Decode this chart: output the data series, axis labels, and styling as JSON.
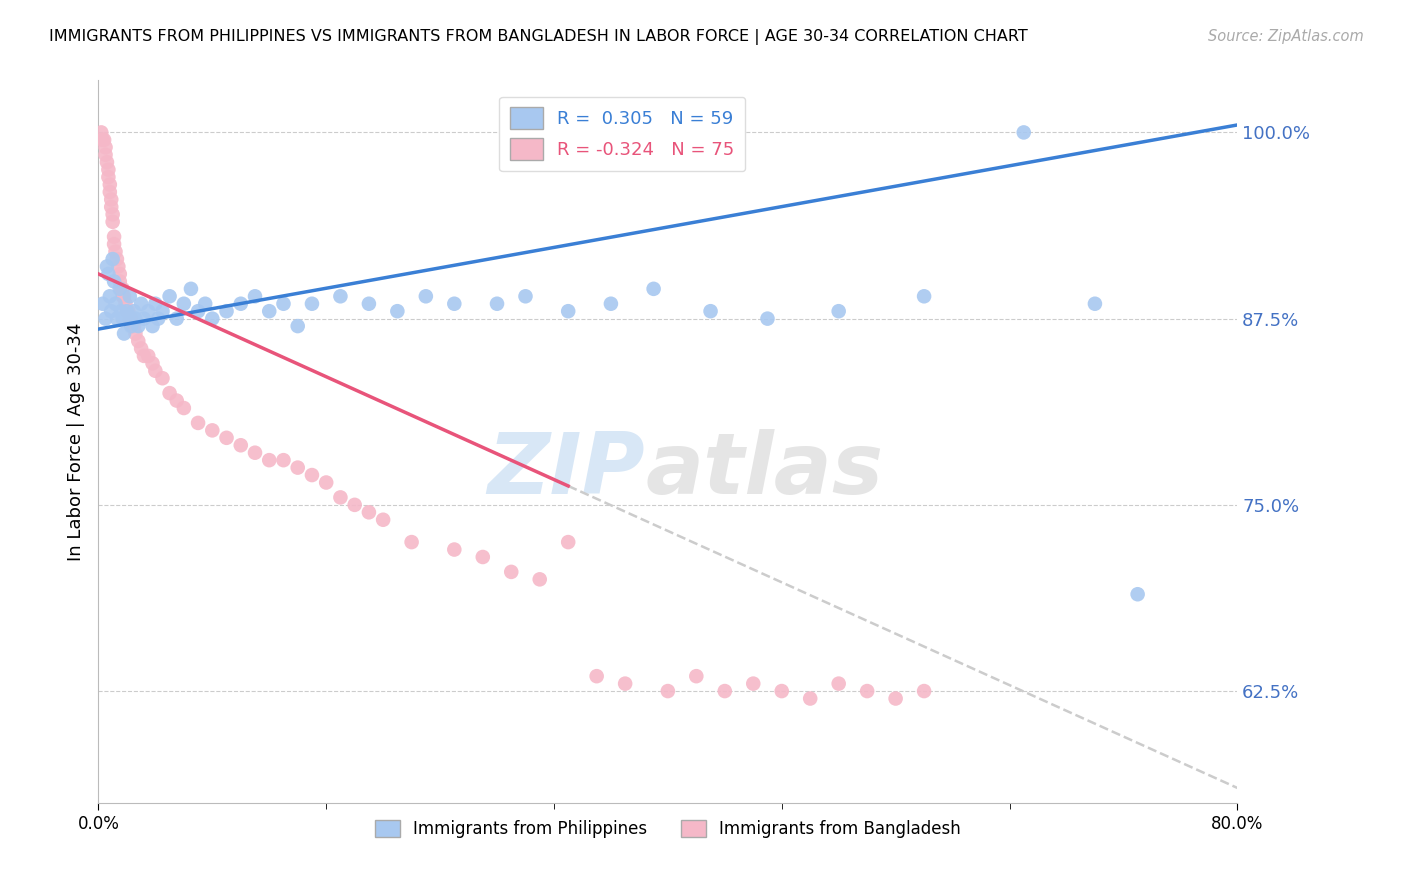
{
  "title": "IMMIGRANTS FROM PHILIPPINES VS IMMIGRANTS FROM BANGLADESH IN LABOR FORCE | AGE 30-34 CORRELATION CHART",
  "source": "Source: ZipAtlas.com",
  "ylabel": "In Labor Force | Age 30-34",
  "xlim": [
    0.0,
    80.0
  ],
  "ylim": [
    55.0,
    103.5
  ],
  "yticks": [
    62.5,
    75.0,
    87.5,
    100.0
  ],
  "ytick_labels": [
    "62.5%",
    "75.0%",
    "87.5%",
    "100.0%"
  ],
  "philippines_color": "#a8c8f0",
  "bangladesh_color": "#f5b8c8",
  "philippines_line_color": "#3a7fd5",
  "bangladesh_line_color": "#e8547a",
  "dashed_line_color": "#cccccc",
  "R_philippines": 0.305,
  "N_philippines": 59,
  "R_bangladesh": -0.324,
  "N_bangladesh": 75,
  "axis_color": "#4472c4",
  "watermark_zip": "ZIP",
  "watermark_atlas": "atlas",
  "phil_line_x0": 0.0,
  "phil_line_y0": 86.8,
  "phil_line_x1": 80.0,
  "phil_line_y1": 100.5,
  "bang_line_x0": 0.0,
  "bang_line_y0": 90.5,
  "bang_line_x1": 80.0,
  "bang_line_y1": 56.0,
  "bang_solid_xmax": 33.0,
  "phil_scatter_x": [
    0.3,
    0.5,
    0.6,
    0.7,
    0.8,
    0.9,
    1.0,
    1.1,
    1.2,
    1.3,
    1.5,
    1.6,
    1.7,
    1.8,
    2.0,
    2.1,
    2.2,
    2.3,
    2.5,
    2.6,
    2.8,
    3.0,
    3.2,
    3.5,
    3.8,
    4.0,
    4.2,
    4.5,
    5.0,
    5.5,
    6.0,
    6.5,
    7.0,
    7.5,
    8.0,
    9.0,
    10.0,
    11.0,
    12.0,
    13.0,
    14.0,
    15.0,
    17.0,
    19.0,
    21.0,
    23.0,
    25.0,
    28.0,
    30.0,
    33.0,
    36.0,
    39.0,
    43.0,
    47.0,
    52.0,
    58.0,
    65.0,
    70.0,
    73.0
  ],
  "phil_scatter_y": [
    88.5,
    87.5,
    91.0,
    90.5,
    89.0,
    88.0,
    91.5,
    90.0,
    88.5,
    87.5,
    89.5,
    88.0,
    87.5,
    86.5,
    88.0,
    87.5,
    89.0,
    87.0,
    88.0,
    87.5,
    87.0,
    88.5,
    87.5,
    88.0,
    87.0,
    88.5,
    87.5,
    88.0,
    89.0,
    87.5,
    88.5,
    89.5,
    88.0,
    88.5,
    87.5,
    88.0,
    88.5,
    89.0,
    88.0,
    88.5,
    87.0,
    88.5,
    89.0,
    88.5,
    88.0,
    89.0,
    88.5,
    88.5,
    89.0,
    88.0,
    88.5,
    89.5,
    88.0,
    87.5,
    88.0,
    89.0,
    100.0,
    88.5,
    69.0
  ],
  "bang_scatter_x": [
    0.2,
    0.3,
    0.4,
    0.5,
    0.5,
    0.6,
    0.7,
    0.7,
    0.8,
    0.8,
    0.9,
    0.9,
    1.0,
    1.0,
    1.1,
    1.1,
    1.2,
    1.3,
    1.4,
    1.5,
    1.5,
    1.6,
    1.7,
    1.7,
    1.8,
    1.9,
    2.0,
    2.1,
    2.2,
    2.3,
    2.4,
    2.5,
    2.6,
    2.8,
    3.0,
    3.2,
    3.5,
    3.8,
    4.0,
    4.5,
    5.0,
    5.5,
    6.0,
    7.0,
    8.0,
    9.0,
    10.0,
    11.0,
    12.0,
    13.0,
    14.0,
    15.0,
    16.0,
    17.0,
    18.0,
    19.0,
    20.0,
    22.0,
    25.0,
    27.0,
    29.0,
    31.0,
    33.0,
    35.0,
    37.0,
    40.0,
    42.0,
    44.0,
    46.0,
    48.0,
    50.0,
    52.0,
    54.0,
    56.0,
    58.0
  ],
  "bang_scatter_y": [
    100.0,
    99.5,
    99.5,
    99.0,
    98.5,
    98.0,
    97.5,
    97.0,
    96.5,
    96.0,
    95.5,
    95.0,
    94.5,
    94.0,
    93.0,
    92.5,
    92.0,
    91.5,
    91.0,
    90.5,
    90.0,
    89.5,
    89.5,
    89.0,
    89.0,
    88.5,
    88.0,
    88.0,
    87.5,
    87.5,
    87.0,
    87.0,
    86.5,
    86.0,
    85.5,
    85.0,
    85.0,
    84.5,
    84.0,
    83.5,
    82.5,
    82.0,
    81.5,
    80.5,
    80.0,
    79.5,
    79.0,
    78.5,
    78.0,
    78.0,
    77.5,
    77.0,
    76.5,
    75.5,
    75.0,
    74.5,
    74.0,
    72.5,
    72.0,
    71.5,
    70.5,
    70.0,
    72.5,
    63.5,
    63.0,
    62.5,
    63.5,
    62.5,
    63.0,
    62.5,
    62.0,
    63.0,
    62.5,
    62.0,
    62.5
  ]
}
